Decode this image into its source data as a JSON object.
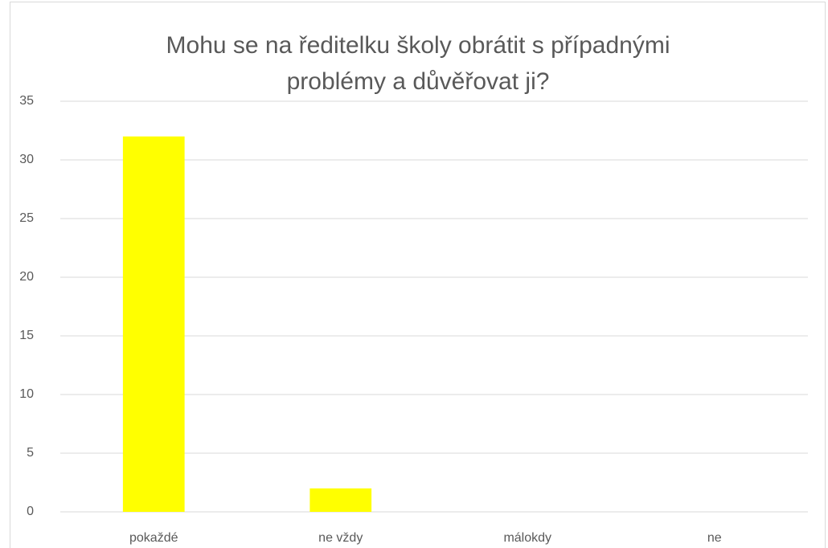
{
  "chart_data": {
    "type": "bar",
    "title": "Mohu se na ředitelku školy obrátit s případnými problémy a důvěřovat ji?",
    "categories": [
      "pokaždé",
      "ne vždy",
      "málokdy",
      "ne"
    ],
    "values": [
      32,
      2,
      0,
      0
    ],
    "color": "#ffff00",
    "ylim": [
      0,
      35
    ],
    "yticks": [
      0,
      5,
      10,
      15,
      20,
      25,
      30,
      35
    ],
    "grid": true
  }
}
